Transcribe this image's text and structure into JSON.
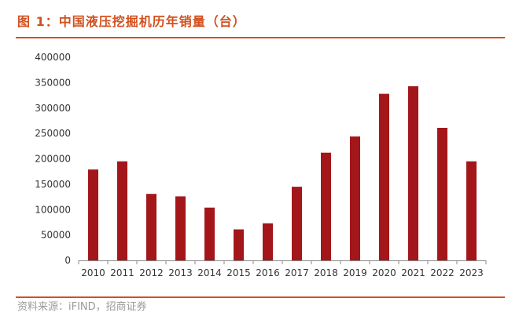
{
  "figure": {
    "title": "图 1：中国液压挖掘机历年销量（台）",
    "source": "资料来源：iFIND，招商证券"
  },
  "colors": {
    "bar": "#A3171B",
    "accent": "#D2501E",
    "axis": "#888888"
  },
  "chart_data": {
    "type": "bar",
    "title": "",
    "xlabel": "",
    "ylabel": "",
    "categories": [
      "2010",
      "2011",
      "2012",
      "2013",
      "2014",
      "2015",
      "2016",
      "2017",
      "2018",
      "2019",
      "2020",
      "2021",
      "2022",
      "2023"
    ],
    "values": [
      179000,
      195000,
      131000,
      126000,
      104000,
      61000,
      73000,
      145000,
      212000,
      244000,
      328000,
      343000,
      261000,
      195000
    ],
    "ylim": [
      0,
      400000
    ],
    "yticks": [
      "0",
      "50000",
      "100000",
      "150000",
      "200000",
      "250000",
      "300000",
      "350000",
      "400000"
    ],
    "grid": false,
    "legend": "none"
  }
}
